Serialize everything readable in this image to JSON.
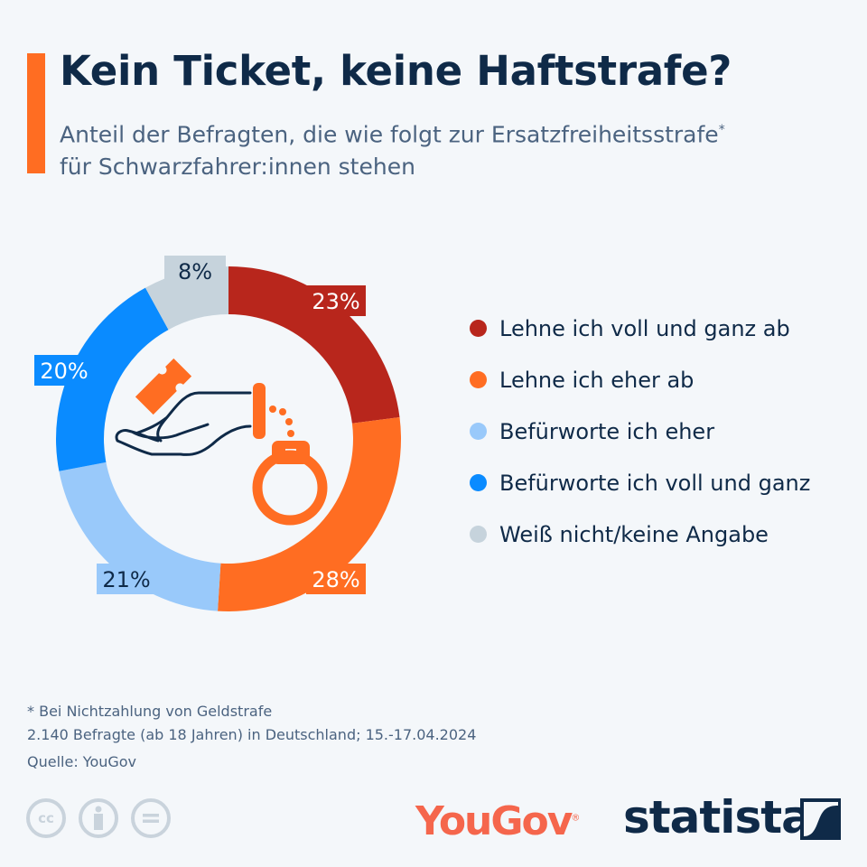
{
  "header": {
    "title": "Kein Ticket, keine Haftstrafe?",
    "subtitle": "Anteil der Befragten, die wie folgt zur Ersatzfreiheitsstrafe",
    "subtitle_mark": "*",
    "subtitle2": "für Schwarzfahrer:innen stehen"
  },
  "chart_data": {
    "type": "pie",
    "variant": "donut",
    "title": "Kein Ticket, keine Haftstrafe?",
    "unit": "%",
    "categories": [
      "Lehne ich voll und ganz ab",
      "Lehne ich eher ab",
      "Befürworte ich eher",
      "Befürworte ich voll und ganz",
      "Weiß nicht/keine Angabe"
    ],
    "values": [
      23,
      28,
      21,
      20,
      8
    ],
    "labels": [
      "23%",
      "28%",
      "21%",
      "20%",
      "8%"
    ],
    "colors": [
      "#b8261c",
      "#ff6d22",
      "#99c9fa",
      "#0a8bff",
      "#c6d3dc"
    ],
    "label_colors": [
      "#ffffff",
      "#ffffff",
      "#0f2a48",
      "#ffffff",
      "#0f2a48"
    ],
    "legend_position": "right"
  },
  "footer": {
    "note": "* Bei Nichtzahlung von Geldstrafe",
    "sample": "2.140 Befragte (ab 18 Jahren) in Deutschland; 15.-17.04.2024",
    "source": "Quelle: YouGov"
  },
  "logos": {
    "yougov": "YouGov",
    "statista": "statista"
  },
  "license_icons": [
    "cc-icon",
    "by-icon",
    "nd-icon"
  ]
}
